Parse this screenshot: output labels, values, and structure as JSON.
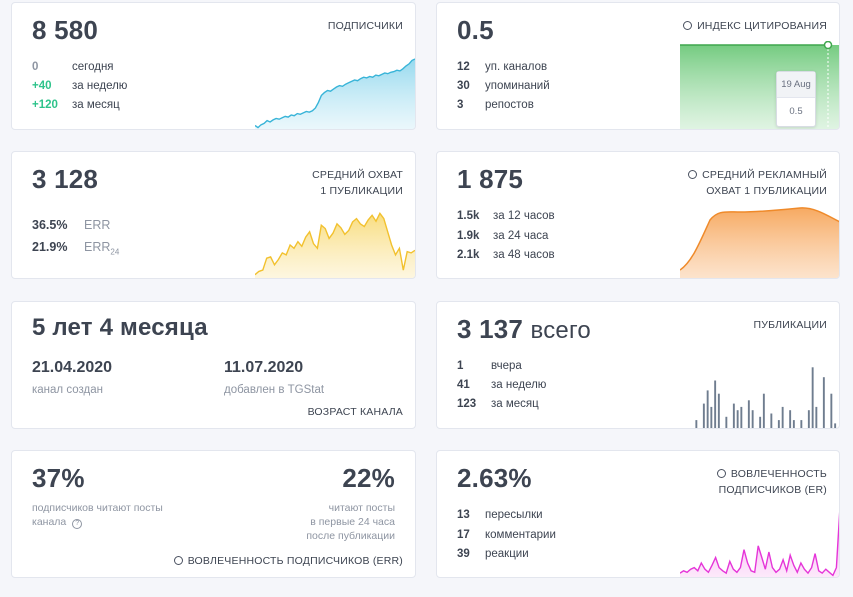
{
  "subscribers": {
    "title": "ПОДПИСЧИКИ",
    "value": "8 580",
    "rows": [
      {
        "num": "0",
        "label": "сегодня",
        "color": "#8e95a2"
      },
      {
        "num": "+40",
        "label": "за неделю",
        "color": "#2ec38b"
      },
      {
        "num": "+120",
        "label": "за месяц",
        "color": "#2ec38b"
      }
    ],
    "chart_color": "#38b4d8",
    "trend": [
      0.05,
      0.02,
      0.06,
      0.08,
      0.12,
      0.1,
      0.13,
      0.15,
      0.14,
      0.16,
      0.18,
      0.17,
      0.2,
      0.19,
      0.22,
      0.21,
      0.23,
      0.25,
      0.24,
      0.26,
      0.3,
      0.38,
      0.48,
      0.52,
      0.55,
      0.54,
      0.57,
      0.6,
      0.62,
      0.61,
      0.64,
      0.66,
      0.68,
      0.7,
      0.69,
      0.72,
      0.74,
      0.73,
      0.75,
      0.74,
      0.77,
      0.76,
      0.78,
      0.8,
      0.79,
      0.81,
      0.82,
      0.84,
      0.83,
      0.86,
      0.9,
      0.93,
      0.98,
      1.0
    ]
  },
  "citation": {
    "title": "ИНДЕКС ЦИТИРОВАНИЯ",
    "value": "0.5",
    "rows": [
      {
        "num": "12",
        "label": "уп. каналов"
      },
      {
        "num": "30",
        "label": "упоминаний"
      },
      {
        "num": "3",
        "label": "репостов"
      }
    ],
    "tooltip_date": "19 Aug",
    "tooltip_value": "0.5",
    "chart_color": "#4caf50"
  },
  "reach": {
    "title_line1": "СРЕДНИЙ ОХВАТ",
    "title_line2": "1 ПУБЛИКАЦИИ",
    "value": "3 128",
    "rows": [
      {
        "num": "36.5%",
        "label": "ERR",
        "sub": ""
      },
      {
        "num": "21.9%",
        "label": "ERR",
        "sub": "24"
      }
    ],
    "chart_color": "#f2c12e",
    "trend": [
      0.05,
      0.1,
      0.12,
      0.3,
      0.32,
      0.2,
      0.28,
      0.38,
      0.35,
      0.5,
      0.45,
      0.55,
      0.48,
      0.62,
      0.7,
      0.52,
      0.45,
      0.8,
      0.75,
      0.6,
      0.68,
      0.82,
      0.76,
      0.66,
      0.72,
      0.85,
      0.9,
      0.82,
      0.78,
      0.88,
      0.95,
      0.86,
      0.98,
      0.9,
      0.7,
      0.5,
      0.35,
      0.45,
      0.12,
      0.4,
      0.38,
      0.42
    ]
  },
  "ad_reach": {
    "title_line1": "СРЕДНИЙ РЕКЛАМНЫЙ",
    "title_line2": "ОХВАТ 1 ПУБЛИКАЦИИ",
    "value": "1 875",
    "rows": [
      {
        "num": "1.5k",
        "label": "за 12 часов"
      },
      {
        "num": "1.9k",
        "label": "за 24 часа"
      },
      {
        "num": "2.1k",
        "label": "за 48 часов"
      }
    ],
    "chart_color": "#f39237"
  },
  "age": {
    "title": "ВОЗРАСТ КАНАЛА",
    "value": "5 лет 4 месяца",
    "created_date": "21.04.2020",
    "created_label": "канал создан",
    "added_date": "11.07.2020",
    "added_label": "добавлен в TGStat"
  },
  "posts": {
    "title": "ПУБЛИКАЦИИ",
    "value": "3 137",
    "value_suffix": "всего",
    "rows": [
      {
        "num": "1",
        "label": "вчера"
      },
      {
        "num": "41",
        "label": "за неделю"
      },
      {
        "num": "123",
        "label": "за месяц"
      }
    ],
    "bar_color": "#6f7d8f",
    "bars": [
      0,
      0,
      0.15,
      0,
      0.4,
      0.6,
      0.35,
      0.75,
      0.55,
      0,
      0.2,
      0,
      0.4,
      0.3,
      0.35,
      0,
      0.45,
      0.3,
      0,
      0.2,
      0.55,
      0,
      0.25,
      0,
      0.15,
      0.35,
      0,
      0.3,
      0.15,
      0,
      0.15,
      0,
      0.3,
      0.95,
      0.35,
      0,
      0.8,
      0,
      0.55,
      0.1
    ]
  },
  "err": {
    "title": "ВОВЛЕЧЕННОСТЬ ПОДПИСЧИКОВ (ERR)",
    "left_value": "37%",
    "left_label_line1": "подписчиков читают посты",
    "left_label_line2": "канала",
    "right_value": "22%",
    "right_label_line1": "читают посты",
    "right_label_line2": "в первые 24 часа",
    "right_label_line3": "после публикации"
  },
  "er": {
    "title_line1": "ВОВЛЕЧЕННОСТЬ",
    "title_line2": "ПОДПИСЧИКОВ (ER)",
    "value": "2.63%",
    "rows": [
      {
        "num": "13",
        "label": "пересылки"
      },
      {
        "num": "17",
        "label": "комментарии"
      },
      {
        "num": "39",
        "label": "реакции"
      }
    ],
    "chart_color": "#e535d8",
    "trend": [
      0.05,
      0.08,
      0.06,
      0.1,
      0.12,
      0.08,
      0.18,
      0.1,
      0.06,
      0.15,
      0.25,
      0.12,
      0.08,
      0.05,
      0.2,
      0.1,
      0.06,
      0.12,
      0.35,
      0.18,
      0.08,
      0.06,
      0.4,
      0.25,
      0.1,
      0.32,
      0.12,
      0.06,
      0.1,
      0.22,
      0.08,
      0.28,
      0.15,
      0.06,
      0.18,
      0.1,
      0.05,
      0.12,
      0.3,
      0.08,
      0.05,
      0.1,
      0.06,
      0.02,
      0.12,
      0.9
    ]
  }
}
